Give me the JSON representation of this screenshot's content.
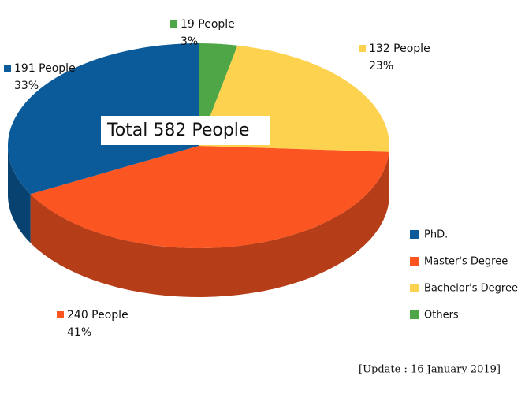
{
  "chart_data": {
    "type": "pie3d",
    "total_label": "Total 582 People",
    "note": "[Update : 16 January 2019]",
    "categories": [
      "PhD.",
      "Master's Degree",
      "Bachelor's Degree",
      "Others"
    ],
    "values": [
      191,
      240,
      132,
      19
    ],
    "value_labels": [
      "191 People",
      "240 People",
      "132 People",
      "19 People"
    ],
    "percents": [
      33,
      41,
      23,
      3
    ],
    "percent_labels": [
      "33%",
      "41%",
      "23%",
      "3%"
    ],
    "colors": [
      "#0b5b9b",
      "#fb5522",
      "#fdd24e",
      "#4fa647"
    ]
  }
}
